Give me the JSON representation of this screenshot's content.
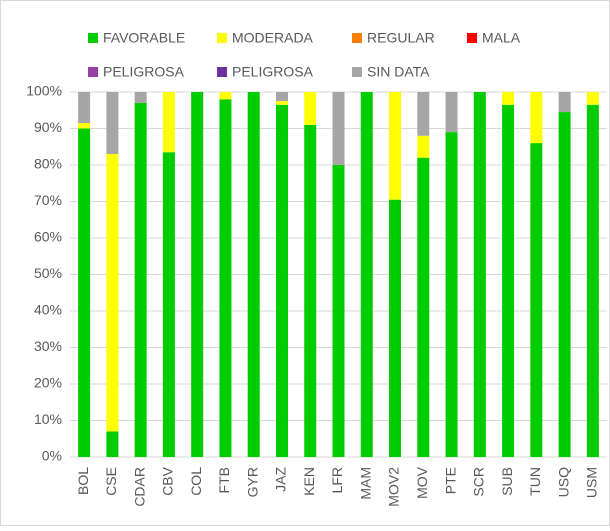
{
  "chart_data": {
    "type": "stacked_bar_100",
    "categories": [
      "BOL",
      "CSE",
      "CDAR",
      "CBV",
      "COL",
      "FTB",
      "GYR",
      "JAZ",
      "KEN",
      "LFR",
      "MAM",
      "MOV2",
      "MOV",
      "PTE",
      "SCR",
      "SUB",
      "TUN",
      "USQ",
      "USM"
    ],
    "series": [
      {
        "name": "FAVORABLE",
        "color": "#00cc00",
        "values": [
          90,
          7,
          97,
          83.5,
          100,
          98,
          100,
          96.5,
          91,
          80,
          100,
          70.5,
          82,
          89,
          100,
          96.5,
          86,
          94.5,
          96.5
        ]
      },
      {
        "name": "MODERADA",
        "color": "#ffff00",
        "values": [
          1.5,
          76,
          0,
          16.5,
          0,
          2,
          0,
          1,
          9,
          0,
          0,
          29.5,
          6,
          0,
          0,
          3.5,
          14,
          0,
          3.5
        ]
      },
      {
        "name": "REGULAR",
        "color": "#ff7f00",
        "values": [
          0,
          0,
          0,
          0,
          0,
          0,
          0,
          0,
          0,
          0,
          0,
          0,
          0,
          0,
          0,
          0,
          0,
          0,
          0
        ]
      },
      {
        "name": "MALA",
        "color": "#ff0000",
        "values": [
          0,
          0,
          0,
          0,
          0,
          0,
          0,
          0,
          0,
          0,
          0,
          0,
          0,
          0,
          0,
          0,
          0,
          0,
          0
        ]
      },
      {
        "name": "PELIGROSA",
        "color": "#9b3fa8",
        "values": [
          0,
          0,
          0,
          0,
          0,
          0,
          0,
          0,
          0,
          0,
          0,
          0,
          0,
          0,
          0,
          0,
          0,
          0,
          0
        ]
      },
      {
        "name": "PELIGROSA",
        "color": "#7030a0",
        "values": [
          0,
          0,
          0,
          0,
          0,
          0,
          0,
          0,
          0,
          0,
          0,
          0,
          0,
          0,
          0,
          0,
          0,
          0,
          0
        ]
      },
      {
        "name": "SIN DATA",
        "color": "#a6a6a6",
        "values": [
          8.5,
          17,
          3,
          0,
          0,
          0,
          0,
          2.5,
          0,
          20,
          0,
          0,
          12,
          11,
          0,
          0,
          0,
          5.5,
          0
        ]
      }
    ],
    "ylim": [
      0,
      100
    ],
    "yticks": [
      {
        "value": 0,
        "label": "0%"
      },
      {
        "value": 10,
        "label": "10%"
      },
      {
        "value": 20,
        "label": "20%"
      },
      {
        "value": 30,
        "label": "30%"
      },
      {
        "value": 40,
        "label": "40%"
      },
      {
        "value": 50,
        "label": "50%"
      },
      {
        "value": 60,
        "label": "60%"
      },
      {
        "value": 70,
        "label": "70%"
      },
      {
        "value": 80,
        "label": "80%"
      },
      {
        "value": 90,
        "label": "90%"
      },
      {
        "value": 100,
        "label": "100%"
      }
    ],
    "grid": true
  }
}
